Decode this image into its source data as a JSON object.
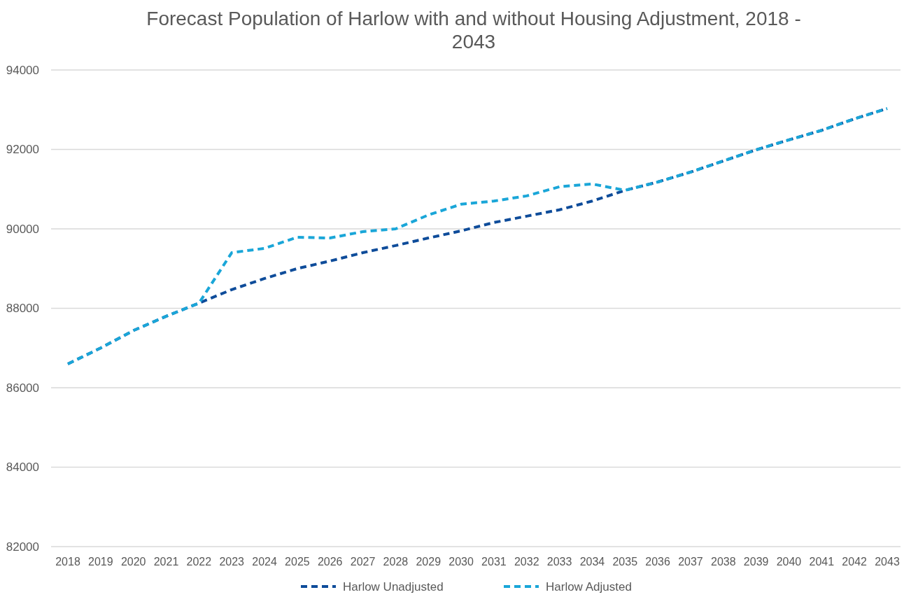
{
  "chart_data": {
    "type": "line",
    "title": "Forecast Population of Harlow with and without Housing Adjustment, 2018 - 2043",
    "categories": [
      "2018",
      "2019",
      "2020",
      "2021",
      "2022",
      "2023",
      "2024",
      "2025",
      "2026",
      "2027",
      "2028",
      "2029",
      "2030",
      "2031",
      "2032",
      "2033",
      "2034",
      "2035",
      "2036",
      "2037",
      "2038",
      "2039",
      "2040",
      "2041",
      "2042",
      "2043"
    ],
    "series": [
      {
        "name": "Harlow Unadjusted",
        "color": "#0e4c9a",
        "values": [
          86600,
          87000,
          87440,
          87800,
          88130,
          88470,
          88750,
          89000,
          89190,
          89400,
          89580,
          89770,
          89950,
          90160,
          90320,
          90480,
          90700,
          90970,
          91180,
          91430,
          91710,
          91990,
          92240,
          92480,
          92770,
          93030
        ]
      },
      {
        "name": "Harlow Adjusted",
        "color": "#1aa6d8",
        "values": [
          86600,
          87000,
          87440,
          87800,
          88130,
          89400,
          89510,
          89790,
          89770,
          89930,
          90000,
          90350,
          90620,
          90700,
          90830,
          91060,
          91130,
          90970,
          91180,
          91430,
          91710,
          91990,
          92240,
          92480,
          92770,
          93030
        ]
      }
    ],
    "ylim": [
      82000,
      94000
    ],
    "yticks": [
      82000,
      84000,
      86000,
      88000,
      90000,
      92000,
      94000
    ],
    "grid": "y",
    "legend": "bottom",
    "line_style": "dashed",
    "marker": "none"
  }
}
